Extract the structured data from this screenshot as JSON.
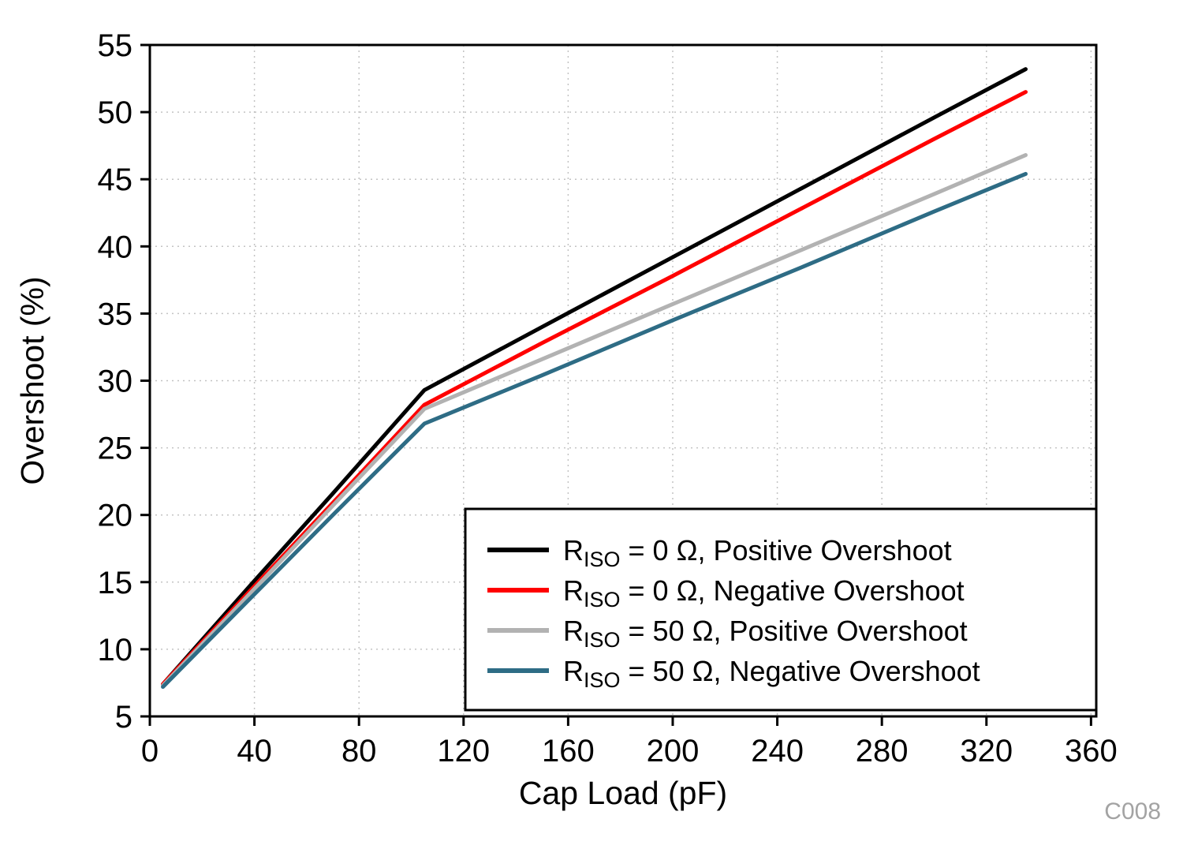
{
  "chart_data": {
    "type": "line",
    "title": "",
    "xlabel": "Cap Load (pF)",
    "ylabel": "Overshoot (%)",
    "watermark": "C008",
    "xlim": [
      0,
      362
    ],
    "ylim": [
      5,
      55
    ],
    "xticks": [
      0,
      40,
      80,
      120,
      160,
      200,
      240,
      280,
      320,
      360
    ],
    "yticks": [
      5,
      10,
      15,
      20,
      25,
      30,
      35,
      40,
      45,
      50,
      55
    ],
    "grid": true,
    "legend_position": "bottom-right",
    "series": [
      {
        "name": "RISO = 0 Ω, Positive Overshoot",
        "label_prefix": "R",
        "label_sub": "ISO",
        "label_rest": " = 0 Ω, Positive Overshoot",
        "color": "#000000",
        "x": [
          5,
          40,
          70,
          105,
          150,
          200,
          250,
          300,
          335
        ],
        "y": [
          7.4,
          15.1,
          21.6,
          29.3,
          34.0,
          39.2,
          44.4,
          49.6,
          53.2
        ]
      },
      {
        "name": "RISO = 0 Ω, Negative Overshoot",
        "label_prefix": "R",
        "label_sub": "ISO",
        "label_rest": " = 0 Ω, Negative Overshoot",
        "color": "#ff0000",
        "x": [
          5,
          40,
          70,
          105,
          150,
          200,
          250,
          300,
          335
        ],
        "y": [
          7.4,
          14.7,
          20.9,
          28.2,
          32.8,
          37.8,
          42.9,
          48.0,
          51.5
        ]
      },
      {
        "name": "RISO = 50 Ω, Positive Overshoot",
        "label_prefix": "R",
        "label_sub": "ISO",
        "label_rest": " = 50 Ω, Positive Overshoot",
        "color": "#b2b2b2",
        "x": [
          5,
          40,
          70,
          105,
          150,
          200,
          250,
          300,
          335
        ],
        "y": [
          7.3,
          14.5,
          20.7,
          27.9,
          31.6,
          35.7,
          39.8,
          43.9,
          46.8
        ]
      },
      {
        "name": "RISO = 50 Ω, Negative Overshoot",
        "label_prefix": "R",
        "label_sub": "ISO",
        "label_rest": " = 50 Ω, Negative Overshoot",
        "color": "#2e6c85",
        "x": [
          5,
          40,
          70,
          105,
          150,
          200,
          250,
          300,
          335
        ],
        "y": [
          7.2,
          14.1,
          20.0,
          26.8,
          30.4,
          34.5,
          38.5,
          42.6,
          45.4
        ]
      }
    ]
  }
}
